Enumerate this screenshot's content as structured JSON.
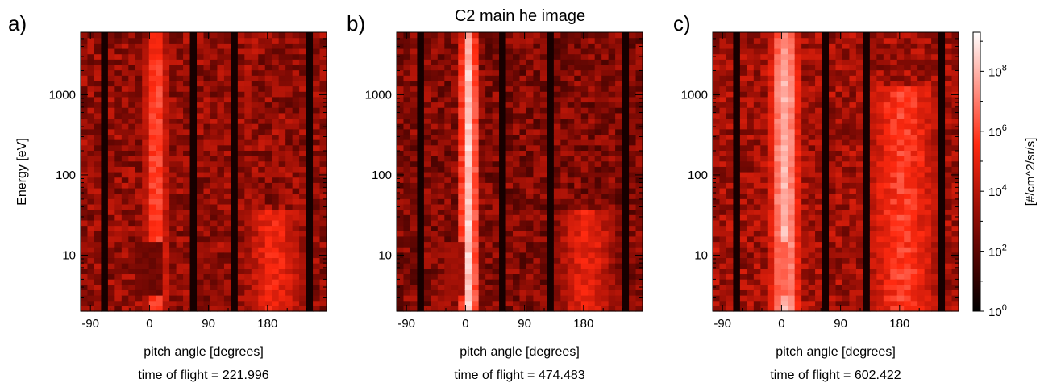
{
  "title": "C2 main he image",
  "colors": {
    "low": "#000000",
    "mid": "#ff2a10",
    "high": "#ffffff"
  },
  "chart_data": [
    {
      "type": "heatmap",
      "panel_label": "a)",
      "xlabel": "pitch angle [degrees]",
      "ylabel": "Energy [eV]",
      "caption": "time of flight = 221.996",
      "x_ticks": [
        -90,
        0,
        90,
        180
      ],
      "y_ticks": [
        10,
        100,
        1000
      ],
      "xlim": [
        -105,
        270
      ],
      "ylim": [
        2,
        6000
      ],
      "y_scale": "log",
      "value_scale": "log",
      "beam": {
        "center": 10,
        "width": 25,
        "peak_exponent": 6.2
      },
      "structure": {
        "dark_columns": [
          -72,
          65,
          125,
          240
        ],
        "low_energy_block": {
          "x_range": [
            -20,
            15
          ],
          "e_range": [
            3,
            15
          ],
          "exponent": 2.5
        },
        "right_band": {
          "center": 190,
          "width": 50,
          "exponent": 5.2,
          "e_max": 40
        }
      },
      "background_exponent": 3.2
    },
    {
      "type": "heatmap",
      "panel_label": "b)",
      "xlabel": "pitch angle [degrees]",
      "ylabel": "",
      "caption": "time of flight = 474.483",
      "x_ticks": [
        -90,
        0,
        90,
        180
      ],
      "y_ticks": [
        10,
        100,
        1000
      ],
      "xlim": [
        -105,
        270
      ],
      "ylim": [
        2,
        6000
      ],
      "y_scale": "log",
      "value_scale": "log",
      "beam": {
        "center": 5,
        "width": 18,
        "peak_exponent": 8.4
      },
      "structure": {
        "dark_columns": [
          -72,
          60,
          125,
          240
        ],
        "low_energy_block": {
          "x_range": [
            -30,
            0
          ],
          "e_range": [
            3,
            15
          ],
          "exponent": 3.5
        },
        "right_band": {
          "center": 185,
          "width": 50,
          "exponent": 5.0,
          "e_max": 40
        }
      },
      "background_exponent": 2.8
    },
    {
      "type": "heatmap",
      "panel_label": "c)",
      "xlabel": "pitch angle [degrees]",
      "ylabel": "",
      "caption": "time of flight = 602.422",
      "x_ticks": [
        -90,
        0,
        90,
        180
      ],
      "y_ticks": [
        10,
        100,
        1000
      ],
      "xlim": [
        -105,
        270
      ],
      "ylim": [
        2,
        6000
      ],
      "y_scale": "log",
      "value_scale": "log",
      "beam": {
        "center": 5,
        "width": 30,
        "peak_exponent": 8.0
      },
      "structure": {
        "dark_columns": [
          -72,
          65,
          125,
          240
        ],
        "low_energy_block": {
          "x_range": [
            -10,
            10
          ],
          "e_range": [
            3,
            15
          ],
          "exponent": 6.5
        },
        "right_band": {
          "center": 185,
          "width": 60,
          "exponent": 5.8,
          "e_max": 1200
        }
      },
      "background_exponent": 3.5
    }
  ],
  "colorbar": {
    "label": "[#/cm^2/sr/s]",
    "tick_labels": [
      {
        "base": "10",
        "exp": "0",
        "value": 0
      },
      {
        "base": "10",
        "exp": "2",
        "value": 2
      },
      {
        "base": "10",
        "exp": "4",
        "value": 4
      },
      {
        "base": "10",
        "exp": "6",
        "value": 6
      },
      {
        "base": "10",
        "exp": "8",
        "value": 8
      }
    ],
    "range_exponent": [
      0,
      9.3
    ]
  }
}
